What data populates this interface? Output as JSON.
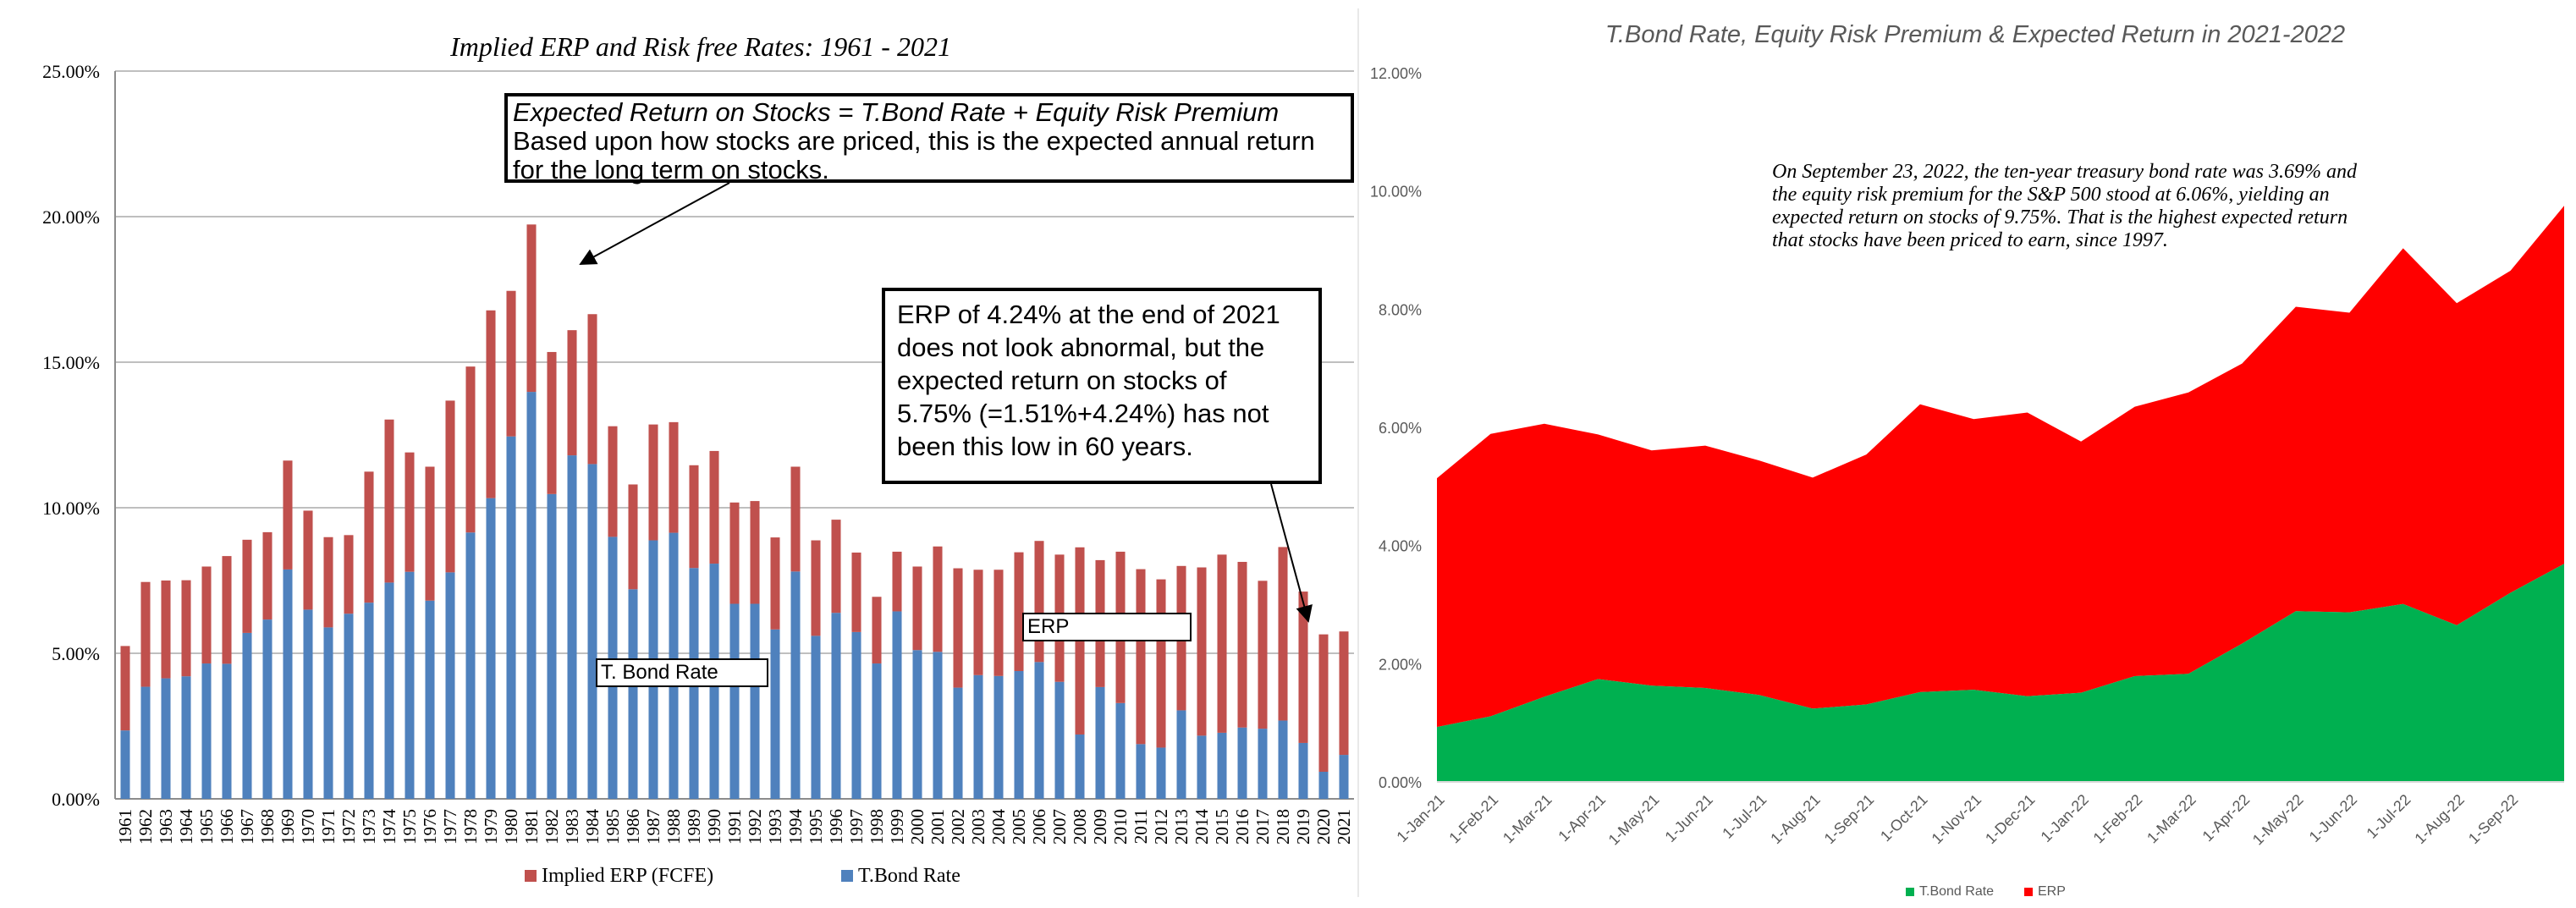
{
  "colors": {
    "erp_left": "#c0504d",
    "tbond_left": "#4f81bd",
    "erp_right": "#ff0000",
    "tbond_right": "#00b050",
    "gridline": "#bfbfbf",
    "right_title": "#595959",
    "right_tick": "#595959"
  },
  "left_callout": {
    "line1": "Expected Return on Stocks = T.Bond Rate + Equity Risk Premium",
    "line2": "Based upon how stocks are priced, this is the expected annual return for the long term on stocks."
  },
  "mid_callout": {
    "text": "ERP of 4.24% at the end of 2021 does not look abnormal, but the expected return on stocks of 5.75% (=1.51%+4.24%) has not been this low in 60 years."
  },
  "inline_labels": {
    "erp": "ERP",
    "tbond": "T. Bond Rate"
  },
  "right_note": "On September 23, 2022, the ten-year treasury bond rate was 3.69% and the equity risk premium for the S&P 500 stood at 6.06%, yielding an expected return on stocks of 9.75%. That is the highest expected return that stocks have been priced to earn, since 1997.",
  "chart_data": [
    {
      "type": "bar",
      "stacked": true,
      "title": "Implied ERP and Risk free Rates: 1961 - 2021",
      "xlabel": "",
      "ylabel": "",
      "ylim": [
        0,
        0.25
      ],
      "yticks": [
        "0.00%",
        "5.00%",
        "10.00%",
        "15.00%",
        "20.00%",
        "25.00%"
      ],
      "grid": true,
      "legend": "bottom",
      "categories": [
        "1961",
        "1962",
        "1963",
        "1964",
        "1965",
        "1966",
        "1967",
        "1968",
        "1969",
        "1970",
        "1971",
        "1972",
        "1973",
        "1974",
        "1975",
        "1976",
        "1977",
        "1978",
        "1979",
        "1980",
        "1981",
        "1982",
        "1983",
        "1984",
        "1985",
        "1986",
        "1987",
        "1988",
        "1989",
        "1990",
        "1991",
        "1992",
        "1993",
        "1994",
        "1995",
        "1996",
        "1997",
        "1998",
        "1999",
        "2000",
        "2001",
        "2002",
        "2003",
        "2004",
        "2005",
        "2006",
        "2007",
        "2008",
        "2009",
        "2010",
        "2011",
        "2012",
        "2013",
        "2014",
        "2015",
        "2016",
        "2017",
        "2018",
        "2019",
        "2020",
        "2021"
      ],
      "series": [
        {
          "name": "T.Bond Rate",
          "values": [
            0.0235,
            0.0385,
            0.0414,
            0.0421,
            0.0465,
            0.0464,
            0.057,
            0.0616,
            0.0788,
            0.065,
            0.0589,
            0.0636,
            0.0674,
            0.0743,
            0.078,
            0.0681,
            0.0778,
            0.0915,
            0.1033,
            0.1245,
            0.1398,
            0.1047,
            0.118,
            0.115,
            0.09,
            0.072,
            0.0888,
            0.0914,
            0.0793,
            0.0808,
            0.067,
            0.067,
            0.0582,
            0.0781,
            0.056,
            0.0639,
            0.0573,
            0.0465,
            0.0644,
            0.0511,
            0.0505,
            0.0382,
            0.0425,
            0.0422,
            0.0439,
            0.047,
            0.0402,
            0.0221,
            0.0384,
            0.0329,
            0.0188,
            0.0176,
            0.0304,
            0.0217,
            0.0227,
            0.0245,
            0.0241,
            0.0269,
            0.0192,
            0.0093,
            0.0151
          ]
        },
        {
          "name": "Implied ERP (FCFE)",
          "values": [
            0.029,
            0.036,
            0.0336,
            0.033,
            0.0333,
            0.037,
            0.032,
            0.03,
            0.0374,
            0.034,
            0.031,
            0.027,
            0.045,
            0.056,
            0.041,
            0.046,
            0.059,
            0.057,
            0.0645,
            0.05,
            0.0575,
            0.0488,
            0.043,
            0.0515,
            0.038,
            0.036,
            0.0398,
            0.038,
            0.0353,
            0.0387,
            0.0348,
            0.0353,
            0.0316,
            0.036,
            0.0328,
            0.032,
            0.0273,
            0.0229,
            0.0205,
            0.0287,
            0.0362,
            0.041,
            0.0362,
            0.0365,
            0.0408,
            0.0416,
            0.0437,
            0.0643,
            0.0436,
            0.052,
            0.0601,
            0.0578,
            0.0496,
            0.0578,
            0.0612,
            0.0569,
            0.0508,
            0.0596,
            0.052,
            0.0472,
            0.0424
          ]
        }
      ]
    },
    {
      "type": "area",
      "stacked": true,
      "title": "T.Bond Rate, Equity Risk Premium & Expected Return  in 2021-2022",
      "xlabel": "",
      "ylabel": "",
      "ylim": [
        0,
        0.12
      ],
      "yticks": [
        "0.00%",
        "2.00%",
        "4.00%",
        "6.00%",
        "8.00%",
        "10.00%",
        "12.00%"
      ],
      "grid": false,
      "legend": "bottom",
      "x": [
        "1-Jan-21",
        "1-Feb-21",
        "1-Mar-21",
        "1-Apr-21",
        "1-May-21",
        "1-Jun-21",
        "1-Jul-21",
        "1-Aug-21",
        "1-Sep-21",
        "1-Oct-21",
        "1-Nov-21",
        "1-Dec-21",
        "1-Jan-22",
        "1-Feb-22",
        "1-Mar-22",
        "1-Apr-22",
        "1-May-22",
        "1-Jun-22",
        "1-Jul-22",
        "1-Aug-22",
        "1-Sep-22",
        "23-Sep-22"
      ],
      "xtick_labels": [
        "1-Jan-21",
        "1-Feb-21",
        "1-Mar-21",
        "1-Apr-21",
        "1-May-21",
        "1-Jun-21",
        "1-Jul-21",
        "1-Aug-21",
        "1-Sep-21",
        "1-Oct-21",
        "1-Nov-21",
        "1-Dec-21",
        "1-Jan-22",
        "1-Feb-22",
        "1-Mar-22",
        "1-Apr-22",
        "1-May-22",
        "1-Jun-22",
        "1-Jul-22",
        "1-Aug-22",
        "1-Sep-22"
      ],
      "series": [
        {
          "name": "T.Bond Rate",
          "values": [
            0.0093,
            0.0111,
            0.0144,
            0.0174,
            0.0163,
            0.0159,
            0.0147,
            0.0124,
            0.0131,
            0.0152,
            0.0156,
            0.0145,
            0.0151,
            0.0179,
            0.0183,
            0.0234,
            0.0289,
            0.0287,
            0.0301,
            0.0265,
            0.032,
            0.0369
          ]
        },
        {
          "name": "ERP",
          "values": [
            0.0421,
            0.0478,
            0.0462,
            0.0414,
            0.0398,
            0.041,
            0.0397,
            0.0391,
            0.0423,
            0.0487,
            0.0458,
            0.048,
            0.0425,
            0.0456,
            0.0476,
            0.0474,
            0.0515,
            0.0507,
            0.0602,
            0.0545,
            0.0545,
            0.0606
          ]
        }
      ]
    }
  ]
}
